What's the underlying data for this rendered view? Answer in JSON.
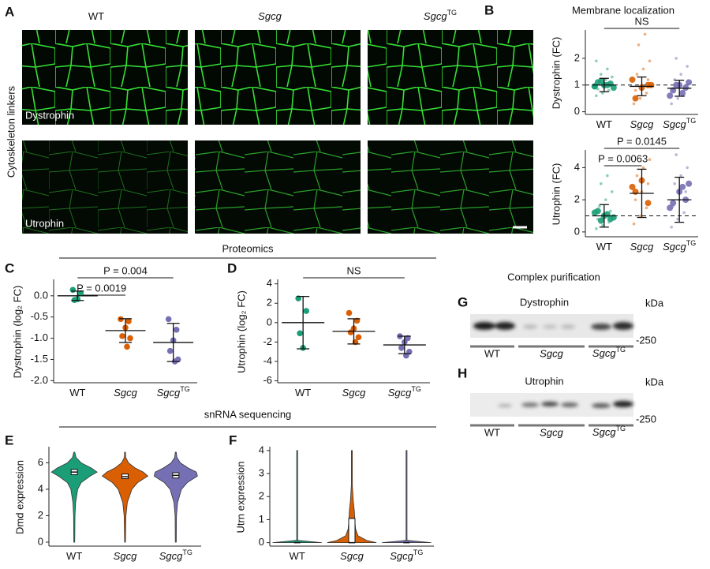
{
  "figure": {
    "panel_letters": [
      "A",
      "B",
      "C",
      "D",
      "E",
      "F",
      "G",
      "H"
    ],
    "micrographs": {
      "columns": [
        "WT",
        "Sgcg",
        "Sgcg"
      ],
      "column_superscripts": [
        null,
        null,
        "TG"
      ],
      "row_group": "Cytoskeleton linkers",
      "rows": [
        "Dystrophin",
        "Utrophin"
      ]
    },
    "membrane_title": "Membrane localization",
    "section_titles": [
      "Proteomics",
      "snRNA sequencing"
    ],
    "blots": {
      "title": "Complex purification",
      "unit": "kDa",
      "marker": "-250",
      "panels": [
        "Dystrophin",
        "Utrophin"
      ],
      "lanes": [
        "WT",
        "Sgcg",
        "Sgcg"
      ],
      "lane_superscripts": [
        null,
        null,
        "TG"
      ]
    }
  },
  "chart_data": [
    {
      "type": "dot",
      "ylabel": "Dystrophin (FC)",
      "categories": [
        "WT",
        "Sgcg",
        "Sgcg"
      ],
      "category_superscripts": [
        null,
        null,
        "TG"
      ],
      "category_italic": [
        false,
        true,
        true
      ],
      "ylim": [
        -0.1,
        3.0
      ],
      "yticks": [
        0,
        1,
        2
      ],
      "reference_line": 1,
      "brackets": [
        {
          "text": "NS",
          "from": 0,
          "to": 2
        }
      ],
      "groups": [
        {
          "color": "#1b9e77",
          "points": [
            0.6,
            0.7,
            0.8,
            0.85,
            0.9,
            1.0,
            1.1,
            1.2,
            1.3,
            1.4,
            1.6,
            1.9
          ],
          "replicates": [
            0.95,
            1.05,
            1.0,
            1.1,
            0.9,
            1.0,
            1.15,
            0.95
          ],
          "mean": 1.0,
          "sd": 0.25
        },
        {
          "color": "#d95f02",
          "points": [
            0.3,
            0.5,
            0.7,
            0.8,
            1.0,
            1.2,
            1.4,
            1.6,
            1.9,
            2.5,
            2.9
          ],
          "replicates": [
            1.2,
            1.0,
            0.9,
            0.5,
            1.0
          ],
          "mean": 0.95,
          "sd": 0.35
        },
        {
          "color": "#7570b3",
          "points": [
            0.3,
            0.5,
            0.6,
            0.8,
            0.9,
            1.0,
            1.2,
            1.4,
            1.7,
            2.0
          ],
          "replicates": [
            0.6,
            0.9,
            1.0,
            0.8,
            1.1,
            0.7,
            1.0
          ],
          "mean": 0.88,
          "sd": 0.3
        }
      ]
    },
    {
      "type": "dot",
      "ylabel": "Utrophin (FC)",
      "categories": [
        "WT",
        "Sgcg",
        "Sgcg"
      ],
      "category_superscripts": [
        null,
        null,
        "TG"
      ],
      "category_italic": [
        false,
        true,
        true
      ],
      "ylim": [
        -0.3,
        5.0
      ],
      "yticks": [
        0,
        2,
        4
      ],
      "reference_line": 1,
      "brackets": [
        {
          "text": "P = 0.0063",
          "from": 0,
          "to": 1
        },
        {
          "text": "P = 0.0145",
          "from": 0,
          "to": 2
        }
      ],
      "groups": [
        {
          "color": "#1b9e77",
          "points": [
            0.2,
            0.4,
            0.6,
            0.8,
            1.0,
            1.3,
            1.6,
            2.0,
            2.5,
            3.0,
            3.5
          ],
          "replicates": [
            1.2,
            0.8,
            1.0,
            1.3,
            0.9,
            1.1,
            0.7
          ],
          "mean": 1.0,
          "sd": 0.7
        },
        {
          "color": "#d95f02",
          "points": [
            0.5,
            1.0,
            1.5,
            2.0,
            2.5,
            3.0,
            3.5,
            4.0,
            4.5
          ],
          "replicates": [
            2.8,
            1.8,
            3.2,
            2.5
          ],
          "mean": 2.4,
          "sd": 1.5
        },
        {
          "color": "#7570b3",
          "points": [
            0.3,
            0.8,
            1.2,
            1.6,
            2.0,
            2.5,
            3.0,
            3.5,
            4.0,
            4.8
          ],
          "replicates": [
            1.5,
            2.0,
            2.5,
            1.8,
            3.0,
            2.8
          ],
          "mean": 2.0,
          "sd": 1.4
        }
      ]
    },
    {
      "type": "dot",
      "ylabel": "Dystrophin (log₂ FC)",
      "categories": [
        "WT",
        "Sgcg",
        "Sgcg"
      ],
      "category_superscripts": [
        null,
        null,
        "TG"
      ],
      "category_italic": [
        false,
        true,
        true
      ],
      "ylim": [
        -2.05,
        0.35
      ],
      "yticks": [
        {
          "value": 0,
          "label": "0.0"
        },
        -0.5,
        {
          "value": -1,
          "label": "-1.0"
        },
        -1.5,
        {
          "value": -2,
          "label": "-2.0"
        }
      ],
      "brackets": [
        {
          "text": "P = 0.0019",
          "from": 0,
          "to": 1
        },
        {
          "text": "P = 0.004",
          "from": 0,
          "to": 2
        }
      ],
      "groups": [
        {
          "color": "#1b9e77",
          "points": [
            0.14,
            0.06,
            -0.08,
            -0.1
          ],
          "mean": 0.0,
          "sd": 0.11
        },
        {
          "color": "#d95f02",
          "points": [
            -0.55,
            -0.6,
            -0.75,
            -0.95,
            -1.0,
            -1.2
          ],
          "mean": -0.82,
          "sd": 0.28
        },
        {
          "color": "#7570b3",
          "points": [
            -0.55,
            -0.8,
            -1.05,
            -1.3,
            -1.5,
            -1.55
          ],
          "mean": -1.1,
          "sd": 0.45
        }
      ]
    },
    {
      "type": "dot",
      "ylabel": "Utrophin (log₂ FC)",
      "categories": [
        "WT",
        "Sgcg",
        "Sgcg"
      ],
      "category_superscripts": [
        null,
        null,
        "TG"
      ],
      "category_italic": [
        false,
        true,
        true
      ],
      "ylim": [
        -6.2,
        4.3
      ],
      "yticks": [
        -6,
        -4,
        -2,
        0,
        2,
        4
      ],
      "brackets": [
        {
          "text": "NS",
          "from": 0,
          "to": 2
        }
      ],
      "groups": [
        {
          "color": "#1b9e77",
          "points": [
            2.5,
            1.2,
            -2.6,
            -1.1
          ],
          "mean": 0.0,
          "sd": 2.7
        },
        {
          "color": "#d95f02",
          "points": [
            1.0,
            0.2,
            -0.6,
            -1.0,
            -1.5,
            -2.0
          ],
          "mean": -0.9,
          "sd": 1.3
        },
        {
          "color": "#7570b3",
          "points": [
            -1.4,
            -1.6,
            -2.0,
            -2.6,
            -3.0,
            -3.4
          ],
          "mean": -2.3,
          "sd": 0.9
        }
      ]
    },
    {
      "type": "violin",
      "ylabel": "Dmd expression",
      "categories": [
        "WT",
        "Sgcg",
        "Sgcg"
      ],
      "category_superscripts": [
        null,
        null,
        "TG"
      ],
      "category_italic": [
        false,
        true,
        true
      ],
      "ylim": [
        -0.3,
        7.1
      ],
      "yticks": [
        0,
        2,
        4,
        6
      ],
      "density_y": [
        0,
        2,
        3,
        4,
        4.5,
        5,
        5.3,
        5.6,
        6,
        6.4,
        6.8
      ],
      "series": [
        {
          "color": "#1b9e77",
          "density": [
            0.02,
            0.03,
            0.06,
            0.15,
            0.3,
            0.7,
            1.0,
            0.75,
            0.3,
            0.08,
            0
          ],
          "q1": 5.1,
          "median": 5.3,
          "q3": 5.5
        },
        {
          "color": "#d95f02",
          "density": [
            0.02,
            0.04,
            0.1,
            0.3,
            0.55,
            1.0,
            0.8,
            0.45,
            0.15,
            0.03,
            0
          ],
          "q1": 4.8,
          "median": 4.95,
          "q3": 5.15
        },
        {
          "color": "#7570b3",
          "density": [
            0.02,
            0.03,
            0.08,
            0.25,
            0.5,
            0.95,
            0.9,
            0.55,
            0.2,
            0.05,
            0
          ],
          "q1": 4.85,
          "median": 5.05,
          "q3": 5.25
        }
      ]
    },
    {
      "type": "violin",
      "ylabel": "Utrn expression",
      "categories": [
        "WT",
        "Sgcg",
        "Sgcg"
      ],
      "category_superscripts": [
        null,
        null,
        "TG"
      ],
      "category_italic": [
        false,
        true,
        true
      ],
      "ylim": [
        -0.15,
        4.1
      ],
      "yticks": [
        0,
        1,
        2,
        3,
        4
      ],
      "density_y": [
        0,
        0.1,
        0.3,
        0.6,
        1.0,
        1.4,
        1.8,
        2.5,
        3.0,
        3.5,
        4.0
      ],
      "series": [
        {
          "color": "#1b9e77",
          "density": [
            1,
            0.02,
            0.01,
            0.01,
            0.01,
            0.01,
            0.01,
            0.01,
            0.01,
            0.01,
            0
          ],
          "q1": 0,
          "median": 0,
          "q3": 0
        },
        {
          "color": "#d95f02",
          "density": [
            1,
            0.6,
            0.25,
            0.15,
            0.12,
            0.1,
            0.06,
            0.02,
            0.01,
            0.01,
            0.01
          ],
          "q1": 0,
          "median": 0,
          "q3": 1.05
        },
        {
          "color": "#7570b3",
          "density": [
            1,
            0.02,
            0.01,
            0.01,
            0.01,
            0.01,
            0.01,
            0.01,
            0.01,
            0.01,
            0.01
          ],
          "q1": 0,
          "median": 0,
          "q3": 0
        }
      ]
    }
  ]
}
